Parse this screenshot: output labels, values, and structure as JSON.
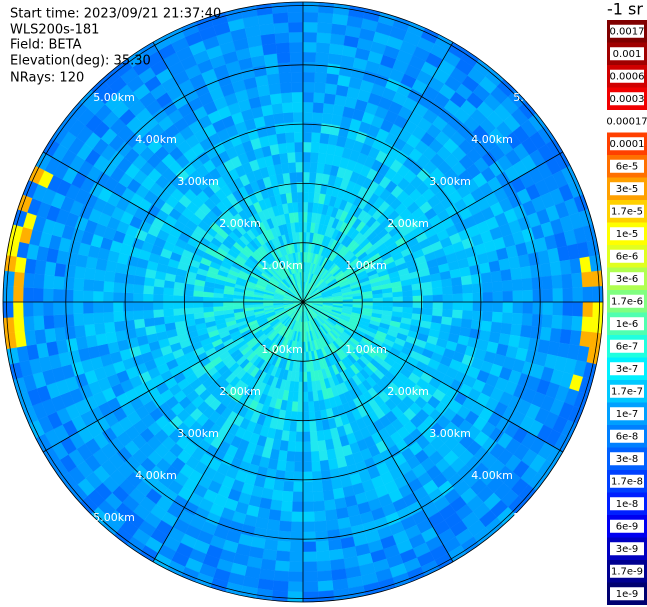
{
  "header": {
    "lines": [
      "Start time: 2023/09/21 21:37:40",
      "WLS200s-181",
      "Field: BETA",
      "Elevation(deg): 35.30",
      "NRays: 120"
    ]
  },
  "range_labels": [
    "1.00km",
    "2.00km",
    "3.00km",
    "4.00km",
    "5.00km"
  ],
  "colorbar": {
    "title": "-1 sr",
    "entries": [
      {
        "label": "0.0017",
        "color": "#800000"
      },
      {
        "label": "0.001",
        "color": "#a00000"
      },
      {
        "label": "0.0006",
        "color": "#d00000"
      },
      {
        "label": "0.0003",
        "color": "#f00000"
      },
      {
        "label": "0.00017",
        "color": "#ffffff"
      },
      {
        "label": "0.0001",
        "color": "#ff4000"
      },
      {
        "label": "6e-5",
        "color": "#ff7000"
      },
      {
        "label": "3e-5",
        "color": "#ffa000"
      },
      {
        "label": "1.7e-5",
        "color": "#ffd000"
      },
      {
        "label": "1e-5",
        "color": "#ffff00"
      },
      {
        "label": "6e-6",
        "color": "#e0ff20"
      },
      {
        "label": "3e-6",
        "color": "#b0ff50"
      },
      {
        "label": "1.7e-6",
        "color": "#80ff80"
      },
      {
        "label": "1e-6",
        "color": "#50ffb0"
      },
      {
        "label": "6e-7",
        "color": "#20ffe0"
      },
      {
        "label": "3e-7",
        "color": "#00f0ff"
      },
      {
        "label": "1.7e-7",
        "color": "#00c8ff"
      },
      {
        "label": "1e-7",
        "color": "#00a0ff"
      },
      {
        "label": "6e-8",
        "color": "#0080ff"
      },
      {
        "label": "3e-8",
        "color": "#0060ff"
      },
      {
        "label": "1.7e-8",
        "color": "#0040ff"
      },
      {
        "label": "1e-8",
        "color": "#0020ff"
      },
      {
        "label": "6e-9",
        "color": "#0000f0"
      },
      {
        "label": "3e-9",
        "color": "#0000c0"
      },
      {
        "label": "1.7e-9",
        "color": "#000090"
      },
      {
        "label": "1e-9",
        "color": "#000070"
      }
    ]
  }
}
